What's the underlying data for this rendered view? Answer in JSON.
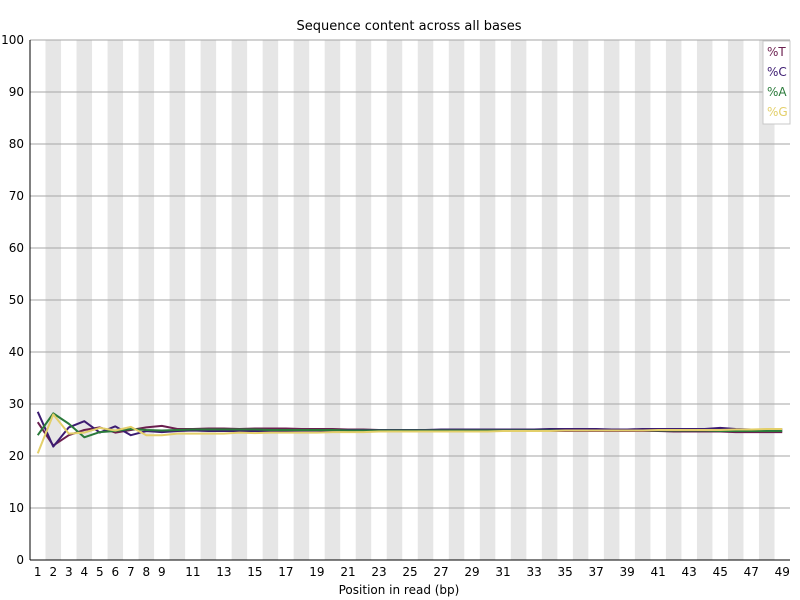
{
  "chart_data": {
    "type": "line",
    "title": "Sequence content across all bases",
    "xlabel": "Position in read (bp)",
    "ylabel": "",
    "ylim": [
      0,
      100
    ],
    "yticks": [
      0,
      10,
      20,
      30,
      40,
      50,
      60,
      70,
      80,
      90,
      100
    ],
    "x": [
      1,
      2,
      3,
      4,
      5,
      6,
      7,
      8,
      9,
      10,
      11,
      12,
      13,
      14,
      15,
      16,
      17,
      18,
      19,
      20,
      21,
      22,
      23,
      24,
      25,
      26,
      27,
      28,
      29,
      30,
      31,
      32,
      33,
      34,
      35,
      36,
      37,
      38,
      39,
      40,
      41,
      42,
      43,
      44,
      45,
      46,
      47,
      48,
      49
    ],
    "xtick_labels": [
      "1",
      "2",
      "3",
      "4",
      "5",
      "6",
      "7",
      "8",
      "9",
      "11",
      "13",
      "15",
      "17",
      "19",
      "21",
      "23",
      "25",
      "27",
      "29",
      "31",
      "33",
      "35",
      "37",
      "39",
      "41",
      "43",
      "45",
      "47",
      "49"
    ],
    "grid": true,
    "legend_position": "top-right",
    "series": [
      {
        "name": "%T",
        "color": "#6b1f4f",
        "values": [
          26.5,
          22.0,
          24.0,
          25.0,
          25.5,
          24.5,
          25.0,
          25.5,
          25.8,
          25.2,
          25.2,
          25.3,
          25.3,
          25.2,
          25.3,
          25.3,
          25.3,
          25.2,
          25.2,
          25.2,
          25.1,
          25.1,
          25.0,
          25.0,
          25.0,
          25.0,
          25.0,
          24.9,
          24.9,
          24.9,
          24.9,
          24.9,
          24.8,
          24.8,
          24.8,
          24.8,
          24.8,
          24.8,
          24.8,
          24.8,
          24.8,
          24.7,
          24.7,
          24.7,
          24.7,
          24.6,
          24.6,
          24.6,
          24.6
        ]
      },
      {
        "name": "%C",
        "color": "#3d1c72",
        "values": [
          28.5,
          21.8,
          25.5,
          26.7,
          24.5,
          25.7,
          24.0,
          24.8,
          24.6,
          24.8,
          24.9,
          24.8,
          24.8,
          24.8,
          24.8,
          24.8,
          24.8,
          24.9,
          24.9,
          24.9,
          25.0,
          25.0,
          25.0,
          25.0,
          25.0,
          25.0,
          25.1,
          25.1,
          25.1,
          25.1,
          25.1,
          25.1,
          25.1,
          25.2,
          25.2,
          25.2,
          25.2,
          25.1,
          25.1,
          25.2,
          25.2,
          25.2,
          25.2,
          25.2,
          25.4,
          25.2,
          25.1,
          25.1,
          25.1
        ]
      },
      {
        "name": "%A",
        "color": "#2a7a3a",
        "values": [
          24.0,
          28.2,
          26.2,
          23.6,
          24.6,
          24.8,
          25.2,
          25.0,
          24.9,
          25.0,
          25.1,
          25.1,
          25.1,
          25.1,
          25.1,
          25.0,
          25.0,
          25.0,
          25.0,
          25.0,
          24.9,
          24.9,
          24.9,
          24.9,
          24.9,
          24.9,
          24.9,
          24.9,
          24.9,
          24.9,
          24.9,
          24.9,
          24.9,
          24.9,
          24.9,
          24.9,
          24.9,
          24.9,
          24.9,
          24.9,
          24.9,
          24.9,
          24.9,
          24.9,
          24.8,
          24.8,
          24.8,
          24.8,
          24.8
        ]
      },
      {
        "name": "%G",
        "color": "#e3cf6a",
        "values": [
          20.5,
          28.0,
          24.3,
          24.5,
          25.4,
          24.9,
          25.6,
          24.0,
          24.0,
          24.3,
          24.3,
          24.3,
          24.3,
          24.5,
          24.4,
          24.5,
          24.5,
          24.5,
          24.5,
          24.6,
          24.6,
          24.6,
          24.7,
          24.7,
          24.7,
          24.7,
          24.7,
          24.7,
          24.7,
          24.7,
          24.8,
          24.8,
          24.8,
          24.8,
          24.9,
          24.9,
          24.9,
          24.9,
          24.9,
          24.9,
          25.0,
          25.0,
          25.0,
          25.0,
          25.0,
          25.1,
          25.1,
          25.2,
          25.2
        ]
      }
    ]
  }
}
